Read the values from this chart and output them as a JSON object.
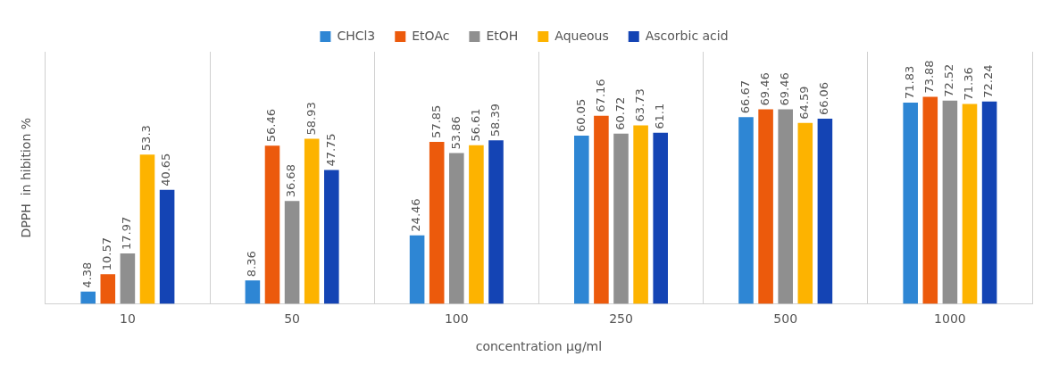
{
  "chart_data": {
    "type": "bar",
    "xlabel": "concentration µg/ml",
    "ylabel": "DPPH  in hibition %",
    "categories": [
      "10",
      "50",
      "100",
      "250",
      "500",
      "1000"
    ],
    "series": [
      {
        "name": "CHCl3",
        "color": "#2e86d4",
        "values": [
          4.38,
          8.36,
          24.46,
          60.05,
          66.67,
          71.83
        ]
      },
      {
        "name": "EtOAc",
        "color": "#ec5a0c",
        "values": [
          10.57,
          56.46,
          57.85,
          67.16,
          69.46,
          73.88
        ]
      },
      {
        "name": "EtOH",
        "color": "#8f8f8f",
        "values": [
          17.97,
          36.68,
          53.86,
          60.72,
          69.46,
          72.52
        ]
      },
      {
        "name": "Aqueous",
        "color": "#fdb300",
        "values": [
          53.3,
          58.93,
          56.61,
          63.73,
          64.59,
          71.36
        ]
      },
      {
        "name": "Ascorbic acid",
        "color": "#1444b4",
        "values": [
          40.65,
          47.75,
          58.39,
          61.1,
          66.06,
          72.24
        ]
      }
    ],
    "data_labels": true,
    "grid": "x",
    "legend": "top"
  }
}
